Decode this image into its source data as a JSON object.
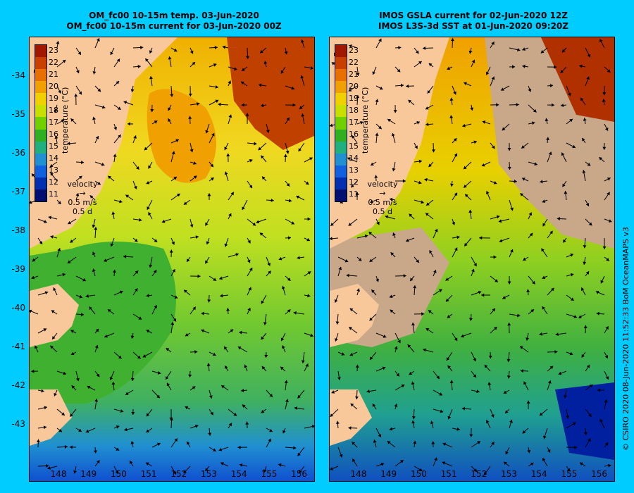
{
  "left_panel": {
    "title_line1": "OM_fc00 10-15m temp. 03-Jun-2020",
    "title_line2": "OM_fc00 10-15m current for 03-Jun-2020 00Z"
  },
  "right_panel": {
    "title_line1": "IMOS GSLA current for 02-Jun-2020 12Z",
    "title_line2": "IMOS L3S-3d SST at 01-Jun-2020 09:20Z"
  },
  "colorbar": {
    "ticks": [
      "23",
      "22",
      "21",
      "20",
      "19",
      "18",
      "17",
      "16",
      "15",
      "14",
      "13",
      "12",
      "11"
    ],
    "label": "temperature (°C)",
    "colors": [
      "#a01800",
      "#c84000",
      "#e87000",
      "#f0a000",
      "#f0d000",
      "#c8e000",
      "#70d000",
      "#30b020",
      "#20b080",
      "#2090d0",
      "#1060e0",
      "#0030b0",
      "#001070"
    ]
  },
  "velocity_key": {
    "label": "velocity",
    "speed": "0.5 m/s",
    "duration": "0.5 d"
  },
  "lat_labels": [
    "-34",
    "-35",
    "-36",
    "-37",
    "-38",
    "-39",
    "-40",
    "-41",
    "-42",
    "-43"
  ],
  "lon_labels": [
    "148",
    "149",
    "150",
    "151",
    "152",
    "153",
    "154",
    "155",
    "156"
  ],
  "credit": "© CSIRO 2020  08-Jun-2020 11:52:33 BoM OceanMAPS v3",
  "colors": {
    "background": "#00ccff",
    "land": "#f8c89a",
    "missing": "#c8a888"
  }
}
